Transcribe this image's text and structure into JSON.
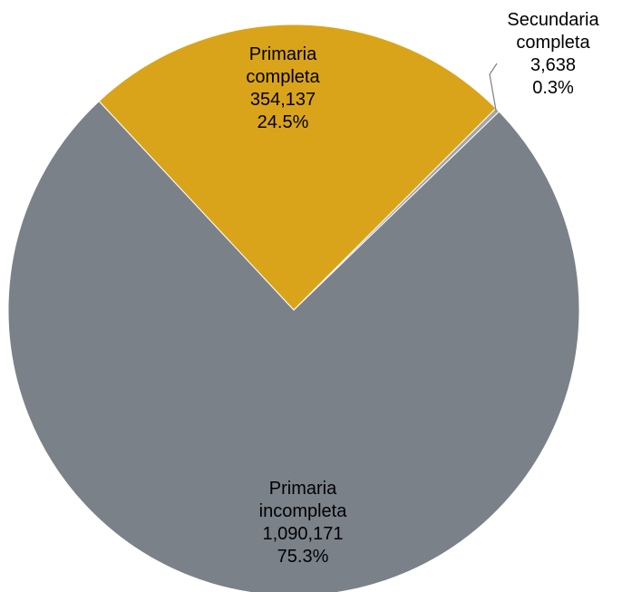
{
  "chart_data": {
    "type": "pie",
    "title": "",
    "slices": [
      {
        "category": [
          "Primaria",
          "incompleta"
        ],
        "value": 1090171,
        "value_label": "1,090,171",
        "percent_label": "75.3%",
        "color": "#7B8189"
      },
      {
        "category": [
          "Primaria",
          "completa"
        ],
        "value": 354137,
        "value_label": "354,137",
        "percent_label": "24.5%",
        "color": "#DAA41A"
      },
      {
        "category": [
          "Secundaria",
          "completa"
        ],
        "value": 3638,
        "value_label": "3,638",
        "percent_label": "0.3%",
        "color": "#A6A6A6"
      }
    ],
    "legend": "none",
    "start_angle": "slice boundary at upper-left, clockwise order: Primaria completa, Secundaria completa, Primaria incompleta"
  }
}
